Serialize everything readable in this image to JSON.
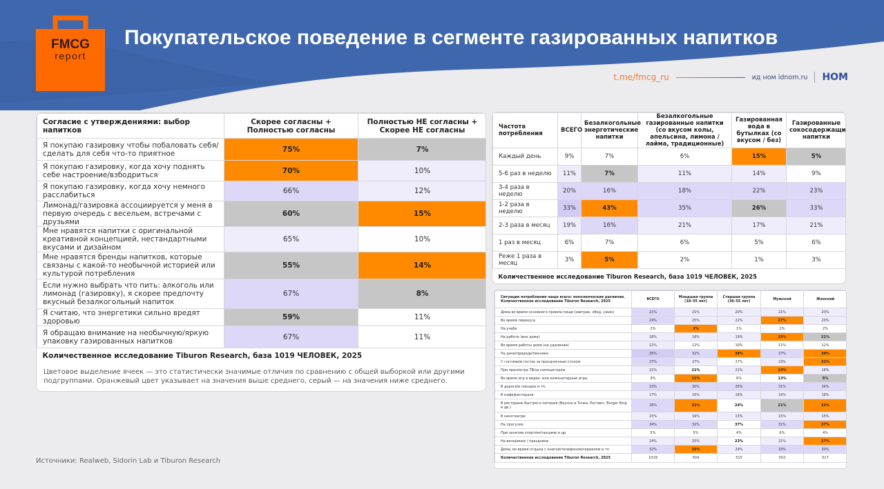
{
  "header": {
    "logo_line1": "FMCG",
    "logo_line2": "report",
    "title": "Покупательское поведение в сегменте газированных напитков",
    "telegram": "t.me/fmcg_ru",
    "publisher": "ид ном idnom.ru",
    "publisher_logo": "НОМ"
  },
  "colors": {
    "brand_blue": "#3f67ad",
    "orange": "#ff8a00",
    "gray": "#c6c6c6",
    "lavender": "#ddd8f8"
  },
  "agreement_table": {
    "headers": [
      "Согласие с утверждениями: выбор напитков",
      "Скорее согласны + Полностью согласны",
      "Полностью НЕ согласны + Скорее НЕ согласны"
    ],
    "rows": [
      {
        "label": "Я покупаю газировку чтобы побаловать себя/ сделать для себя что-то приятное",
        "cells": [
          {
            "v": "75%",
            "c": "o"
          },
          {
            "v": "7%",
            "c": "g"
          }
        ]
      },
      {
        "label": "Я покупаю газировку, когда хочу поднять себе настроение/взбодриться",
        "cells": [
          {
            "v": "70%",
            "c": "o"
          },
          {
            "v": "10%",
            "c": "l"
          }
        ]
      },
      {
        "label": "Я покупаю газировку, когда хочу немного расслабиться",
        "cells": [
          {
            "v": "66%",
            "c": "L"
          },
          {
            "v": "12%",
            "c": "l"
          }
        ]
      },
      {
        "label": "Лимонад/газировка ассоциируется у меня в первую очередь с весельем, встречами с друзьями",
        "cells": [
          {
            "v": "60%",
            "c": "g"
          },
          {
            "v": "15%",
            "c": "o"
          }
        ]
      },
      {
        "label": "Мне нравятся напитки с оригинальной креативной концепцией, нестандартными вкусами и дизайном",
        "cells": [
          {
            "v": "65%",
            "c": "l"
          },
          {
            "v": "10%",
            "c": "w"
          }
        ]
      },
      {
        "label": "Мне нравятся бренды напитков, которые связаны с какой-то необычной историей или культурой потребления",
        "cells": [
          {
            "v": "55%",
            "c": "g"
          },
          {
            "v": "14%",
            "c": "o"
          }
        ]
      },
      {
        "label": "Если нужно выбрать что пить: алкоголь или лимонад (газировку), я скорее предпочту вкусный безалкогольный напиток",
        "cells": [
          {
            "v": "67%",
            "c": "L"
          },
          {
            "v": "8%",
            "c": "g"
          }
        ]
      },
      {
        "label": "Я считаю, что энергетики сильно вредят здоровью",
        "cells": [
          {
            "v": "59%",
            "c": "g"
          },
          {
            "v": "11%",
            "c": "w"
          }
        ]
      },
      {
        "label": "Я обращаю внимание на необычную/яркую упаковку газированных напитков",
        "cells": [
          {
            "v": "67%",
            "c": "L"
          },
          {
            "v": "11%",
            "c": "w"
          }
        ]
      }
    ],
    "footer": "Количественное исследование Tiburon Research, база 1019 ЧЕЛОВЕК, 2025",
    "note": "Цветовое выделение ячеек — это статистически значимые отличия по сравнению с общей выборкой или другими подгруппами. Оранжевый цвет указывает на значения выше среднего, серый — на значения ниже среднего."
  },
  "frequency_table": {
    "headers": [
      "Частота потребления",
      "ВСЕГО",
      "Безалкогольные энергетические напитки",
      "Безалкогольные газированные напитки (со вкусом колы, апельсина, лимона / лайма, традиционные)",
      "Газированная вода в бутылках (со вкусом / без)",
      "Газированные сокосодержащие напитки"
    ],
    "rows": [
      {
        "label": "Каждый день",
        "cells": [
          {
            "v": "9%",
            "c": "w"
          },
          {
            "v": "7%",
            "c": "w"
          },
          {
            "v": "6%",
            "c": "w"
          },
          {
            "v": "15%",
            "c": "o"
          },
          {
            "v": "5%",
            "c": "g"
          }
        ]
      },
      {
        "label": "5-6 раз в неделю",
        "cells": [
          {
            "v": "11%",
            "c": "l"
          },
          {
            "v": "7%",
            "c": "g"
          },
          {
            "v": "11%",
            "c": "l"
          },
          {
            "v": "14%",
            "c": "l"
          },
          {
            "v": "9%",
            "c": "w"
          }
        ]
      },
      {
        "label": "3-4 раза в неделю",
        "cells": [
          {
            "v": "20%",
            "c": "L"
          },
          {
            "v": "16%",
            "c": "L"
          },
          {
            "v": "18%",
            "c": "L"
          },
          {
            "v": "22%",
            "c": "L"
          },
          {
            "v": "23%",
            "c": "L"
          }
        ]
      },
      {
        "label": "1-2 раза в неделю",
        "cells": [
          {
            "v": "33%",
            "c": "M"
          },
          {
            "v": "43%",
            "c": "o"
          },
          {
            "v": "35%",
            "c": "L"
          },
          {
            "v": "26%",
            "c": "g"
          },
          {
            "v": "33%",
            "c": "L"
          }
        ]
      },
      {
        "label": "2-3 раза в месяц",
        "cells": [
          {
            "v": "19%",
            "c": "l"
          },
          {
            "v": "16%",
            "c": "L"
          },
          {
            "v": "21%",
            "c": "l"
          },
          {
            "v": "17%",
            "c": "l"
          },
          {
            "v": "21%",
            "c": "l"
          }
        ]
      },
      {
        "label": "1 раз в месяц",
        "cells": [
          {
            "v": "6%",
            "c": "w"
          },
          {
            "v": "7%",
            "c": "w"
          },
          {
            "v": "6%",
            "c": "w"
          },
          {
            "v": "5%",
            "c": "w"
          },
          {
            "v": "6%",
            "c": "w"
          }
        ]
      },
      {
        "label": "Реже 1 раза в месяц",
        "cells": [
          {
            "v": "3%",
            "c": "w"
          },
          {
            "v": "5%",
            "c": "o"
          },
          {
            "v": "2%",
            "c": "w"
          },
          {
            "v": "1%",
            "c": "w"
          },
          {
            "v": "3%",
            "c": "w"
          }
        ]
      }
    ],
    "footer": "Количественное исследование Tiburon Research, база 1019 ЧЕЛОВЕК, 2025"
  },
  "situation_table": {
    "headers": [
      "Ситуация потребления чаще всего: поколенческие различия. Количественное исследование Tiburon Research, 2025",
      "ВСЕГО",
      "Младшая группа (18–35 лет)",
      "Старшая группа (36–55 лет)",
      "Мужской",
      "Женский"
    ],
    "rows": [
      {
        "label": "Дома во время основного приема пищи (завтрак, обед, ужин)",
        "cells": [
          {
            "v": "21%",
            "c": "L"
          },
          {
            "v": "21%",
            "c": "l"
          },
          {
            "v": "20%",
            "c": "l"
          },
          {
            "v": "21%",
            "c": "l"
          },
          {
            "v": "20%",
            "c": "l"
          }
        ]
      },
      {
        "label": "Во время перекуса",
        "cells": [
          {
            "v": "24%",
            "c": "L"
          },
          {
            "v": "25%",
            "c": "l"
          },
          {
            "v": "22%",
            "c": "l"
          },
          {
            "v": "27%",
            "c": "o"
          },
          {
            "v": "20%",
            "c": "l"
          }
        ]
      },
      {
        "label": "На учебе",
        "cells": [
          {
            "v": "2%",
            "c": "w"
          },
          {
            "v": "3%",
            "c": "o"
          },
          {
            "v": "1%",
            "c": "w"
          },
          {
            "v": "2%",
            "c": "w"
          },
          {
            "v": "2%",
            "c": "w"
          }
        ]
      },
      {
        "label": "На работе (вне дома)",
        "cells": [
          {
            "v": "18%",
            "c": "l"
          },
          {
            "v": "18%",
            "c": "l"
          },
          {
            "v": "19%",
            "c": "l"
          },
          {
            "v": "25%",
            "c": "o"
          },
          {
            "v": "21%",
            "c": "g"
          }
        ]
      },
      {
        "label": "Во время работы дома (на удалении)",
        "cells": [
          {
            "v": "11%",
            "c": "l"
          },
          {
            "v": "12%",
            "c": "w"
          },
          {
            "v": "10%",
            "c": "w"
          },
          {
            "v": "11%",
            "c": "w"
          },
          {
            "v": "11%",
            "c": "w"
          }
        ]
      },
      {
        "label": "На даче/природе/пикнике",
        "cells": [
          {
            "v": "35%",
            "c": "M"
          },
          {
            "v": "32%",
            "c": "L"
          },
          {
            "v": "38%",
            "c": "o"
          },
          {
            "v": "37%",
            "c": "L"
          },
          {
            "v": "39%",
            "c": "o"
          }
        ]
      },
      {
        "label": "С гостями/в гостях за праздничным столом",
        "cells": [
          {
            "v": "27%",
            "c": "L"
          },
          {
            "v": "27%",
            "c": "l"
          },
          {
            "v": "27%",
            "c": "w"
          },
          {
            "v": "23%",
            "c": "l"
          },
          {
            "v": "31%",
            "c": "o"
          }
        ]
      },
      {
        "label": "При просмотре ТВ/за компьютером",
        "cells": [
          {
            "v": "21%",
            "c": "l"
          },
          {
            "v": "21%",
            "c": "b"
          },
          {
            "v": "21%",
            "c": "l"
          },
          {
            "v": "24%",
            "c": "o"
          },
          {
            "v": "18%",
            "c": "l"
          }
        ]
      },
      {
        "label": "Во время игр в видео- или компьютерные игры",
        "cells": [
          {
            "v": "9%",
            "c": "w"
          },
          {
            "v": "11%",
            "c": "o"
          },
          {
            "v": "6%",
            "c": "w"
          },
          {
            "v": "13%",
            "c": "b"
          },
          {
            "v": "5%",
            "c": "g"
          }
        ]
      },
      {
        "label": "В дороге/в поездке и тп.",
        "cells": [
          {
            "v": "33%",
            "c": "L"
          },
          {
            "v": "30%",
            "c": "L"
          },
          {
            "v": "35%",
            "c": "L"
          },
          {
            "v": "31%",
            "c": "L"
          },
          {
            "v": "34%",
            "c": "L"
          }
        ]
      },
      {
        "label": "В кафе/ресторане",
        "cells": [
          {
            "v": "17%",
            "c": "l"
          },
          {
            "v": "16%",
            "c": "l"
          },
          {
            "v": "18%",
            "c": "l"
          },
          {
            "v": "16%",
            "c": "l"
          },
          {
            "v": "18%",
            "c": "l"
          }
        ]
      },
      {
        "label": "В ресторане быстрого питания (Вкусно и Точка, Ростикс, Burger King и др.)",
        "cells": [
          {
            "v": "28%",
            "c": "L"
          },
          {
            "v": "31%",
            "c": "o"
          },
          {
            "v": "24%",
            "c": "b"
          },
          {
            "v": "21%",
            "c": "g"
          },
          {
            "v": "33%",
            "c": "o"
          }
        ]
      },
      {
        "label": "В кинотеатре",
        "cells": [
          {
            "v": "15%",
            "c": "l"
          },
          {
            "v": "16%",
            "c": "l"
          },
          {
            "v": "13%",
            "c": "l"
          },
          {
            "v": "15%",
            "c": "l"
          },
          {
            "v": "15%",
            "c": "l"
          }
        ]
      },
      {
        "label": "На прогулке",
        "cells": [
          {
            "v": "34%",
            "c": "L"
          },
          {
            "v": "32%",
            "c": "L"
          },
          {
            "v": "37%",
            "c": "b"
          },
          {
            "v": "31%",
            "c": "L"
          },
          {
            "v": "37%",
            "c": "o"
          }
        ]
      },
      {
        "label": "При занятии спортом/танцами и др",
        "cells": [
          {
            "v": "5%",
            "c": "w"
          },
          {
            "v": "5%",
            "c": "w"
          },
          {
            "v": "4%",
            "c": "w"
          },
          {
            "v": "6%",
            "c": "w"
          },
          {
            "v": "4%",
            "c": "w"
          }
        ]
      },
      {
        "label": "На вечеринке / празднике",
        "cells": [
          {
            "v": "24%",
            "c": "l"
          },
          {
            "v": "25%",
            "c": "l"
          },
          {
            "v": "23%",
            "c": "b"
          },
          {
            "v": "21%",
            "c": "l"
          },
          {
            "v": "27%",
            "c": "o"
          }
        ]
      },
      {
        "label": "Дома, во время отдыха с книгой/телефоном/сериалом и тп",
        "cells": [
          {
            "v": "32%",
            "c": "L"
          },
          {
            "v": "35%",
            "c": "o"
          },
          {
            "v": "29%",
            "c": "l"
          },
          {
            "v": "33%",
            "c": "L"
          },
          {
            "v": "30%",
            "c": "L"
          }
        ]
      }
    ],
    "footer": {
      "label": "Количественное исследование Tiburon Research, 2025",
      "values": [
        "1019",
        "504",
        "515",
        "502",
        "517"
      ]
    }
  },
  "source": "Источники: Realweb, Sidorin Lab и Tiburon Research"
}
